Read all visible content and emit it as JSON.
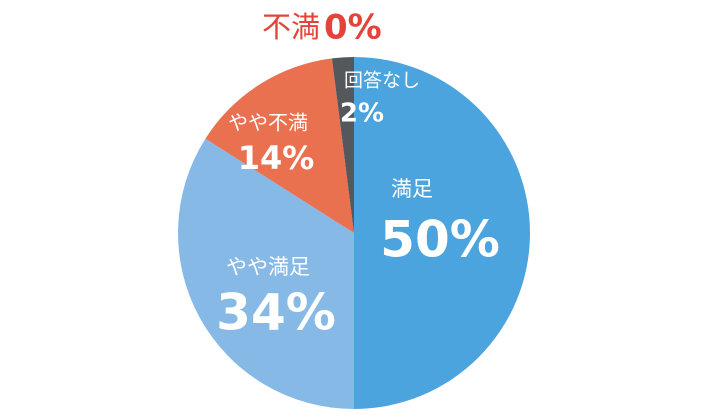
{
  "chart_data": {
    "type": "pie",
    "categories": [
      "満足",
      "やや満足",
      "やや不満",
      "回答なし",
      "不満"
    ],
    "values": [
      50,
      34,
      14,
      2,
      0
    ],
    "value_labels": [
      "50%",
      "34%",
      "14%",
      "2%",
      "0%"
    ],
    "colors": [
      "#4ba4de",
      "#86b9e6",
      "#e9714f",
      "#54585d",
      "#e4433a"
    ]
  }
}
